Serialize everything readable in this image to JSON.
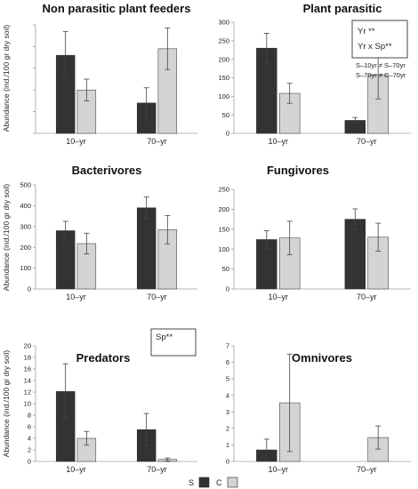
{
  "colors": {
    "S": "#333333",
    "C": "#d4d4d4",
    "axis": "#a0a0a0",
    "text": "#222222"
  },
  "shared_ylabel": "Abundance (ind./100 gr dry soil)",
  "legend": {
    "items": [
      {
        "key": "S",
        "label": "S"
      },
      {
        "key": "C",
        "label": "C"
      }
    ]
  },
  "chart_data": [
    {
      "type": "bar",
      "title": "Non parasitic plant feeders",
      "categories": [
        "10–yr",
        "70–yr"
      ],
      "ylim": [
        0,
        250
      ],
      "yticks": [
        0,
        50,
        100,
        150,
        200,
        250
      ],
      "show_ytick_labels": false,
      "ylabel": "Abundance (ind./100 gr dry soil)",
      "series": [
        {
          "name": "S",
          "values": [
            180,
            70
          ],
          "errors": [
            55,
            35
          ]
        },
        {
          "name": "C",
          "values": [
            100,
            195
          ],
          "errors": [
            25,
            48
          ]
        }
      ],
      "annotations": []
    },
    {
      "type": "bar",
      "title": "Plant parasitic",
      "categories": [
        "10–yr",
        "70–yr"
      ],
      "ylim": [
        0,
        300
      ],
      "yticks": [
        0,
        50,
        100,
        150,
        200,
        250,
        300
      ],
      "show_ytick_labels": true,
      "ylabel": "",
      "series": [
        {
          "name": "S",
          "values": [
            230,
            35
          ],
          "errors": [
            40,
            8
          ]
        },
        {
          "name": "C",
          "values": [
            108,
            158
          ],
          "errors": [
            27,
            65
          ]
        }
      ],
      "annotations": [
        {
          "text": "Yr **",
          "boxed": true
        },
        {
          "text": "Yr x Sp**",
          "boxed": true
        },
        {
          "text": "S–10yr ≠ S–70yr",
          "boxed": false
        },
        {
          "text": "S–70yr ≠ C–70yr",
          "boxed": false
        }
      ]
    },
    {
      "type": "bar",
      "title": "Bacterivores",
      "categories": [
        "10–yr",
        "70–yr"
      ],
      "ylim": [
        0,
        500
      ],
      "yticks": [
        0,
        100,
        200,
        300,
        400,
        500
      ],
      "show_ytick_labels": true,
      "ylabel": "Abundance (ind./100 gr dry soil)",
      "series": [
        {
          "name": "S",
          "values": [
            280,
            390
          ],
          "errors": [
            45,
            52
          ]
        },
        {
          "name": "C",
          "values": [
            218,
            285
          ],
          "errors": [
            50,
            68
          ]
        }
      ],
      "annotations": []
    },
    {
      "type": "bar",
      "title": "Fungivores",
      "categories": [
        "10–yr",
        "70–yr"
      ],
      "ylim": [
        0,
        250
      ],
      "yticks": [
        0,
        50,
        100,
        150,
        200,
        250
      ],
      "show_ytick_labels": true,
      "ylabel": "",
      "series": [
        {
          "name": "S",
          "values": [
            124,
            175
          ],
          "errors": [
            22,
            26
          ]
        },
        {
          "name": "C",
          "values": [
            128,
            130
          ],
          "errors": [
            42,
            35
          ]
        }
      ],
      "annotations": []
    },
    {
      "type": "bar",
      "title": "Predators",
      "categories": [
        "10–yr",
        "70–yr"
      ],
      "ylim": [
        0,
        20
      ],
      "yticks": [
        0,
        2,
        4,
        6,
        8,
        10,
        12,
        14,
        16,
        18,
        20
      ],
      "show_ytick_labels": true,
      "ylabel": "Abundance (ind./100 gr dry soil)",
      "series": [
        {
          "name": "S",
          "values": [
            12.1,
            5.5
          ],
          "errors": [
            4.8,
            2.8
          ]
        },
        {
          "name": "C",
          "values": [
            4.0,
            0.35
          ],
          "errors": [
            1.2,
            0.25
          ]
        }
      ],
      "annotations": [
        {
          "text": "Sp**",
          "boxed": true
        }
      ]
    },
    {
      "type": "bar",
      "title": "Omnivores",
      "categories": [
        "10–yr",
        "70–yr"
      ],
      "ylim": [
        0,
        7
      ],
      "yticks": [
        0,
        1,
        2,
        3,
        4,
        5,
        6,
        7
      ],
      "show_ytick_labels": true,
      "ylabel": "",
      "series": [
        {
          "name": "S",
          "values": [
            0.7,
            0
          ],
          "errors": [
            0.65,
            0
          ]
        },
        {
          "name": "C",
          "values": [
            3.55,
            1.45
          ],
          "errors": [
            2.95,
            0.7
          ]
        }
      ],
      "annotations": []
    }
  ]
}
